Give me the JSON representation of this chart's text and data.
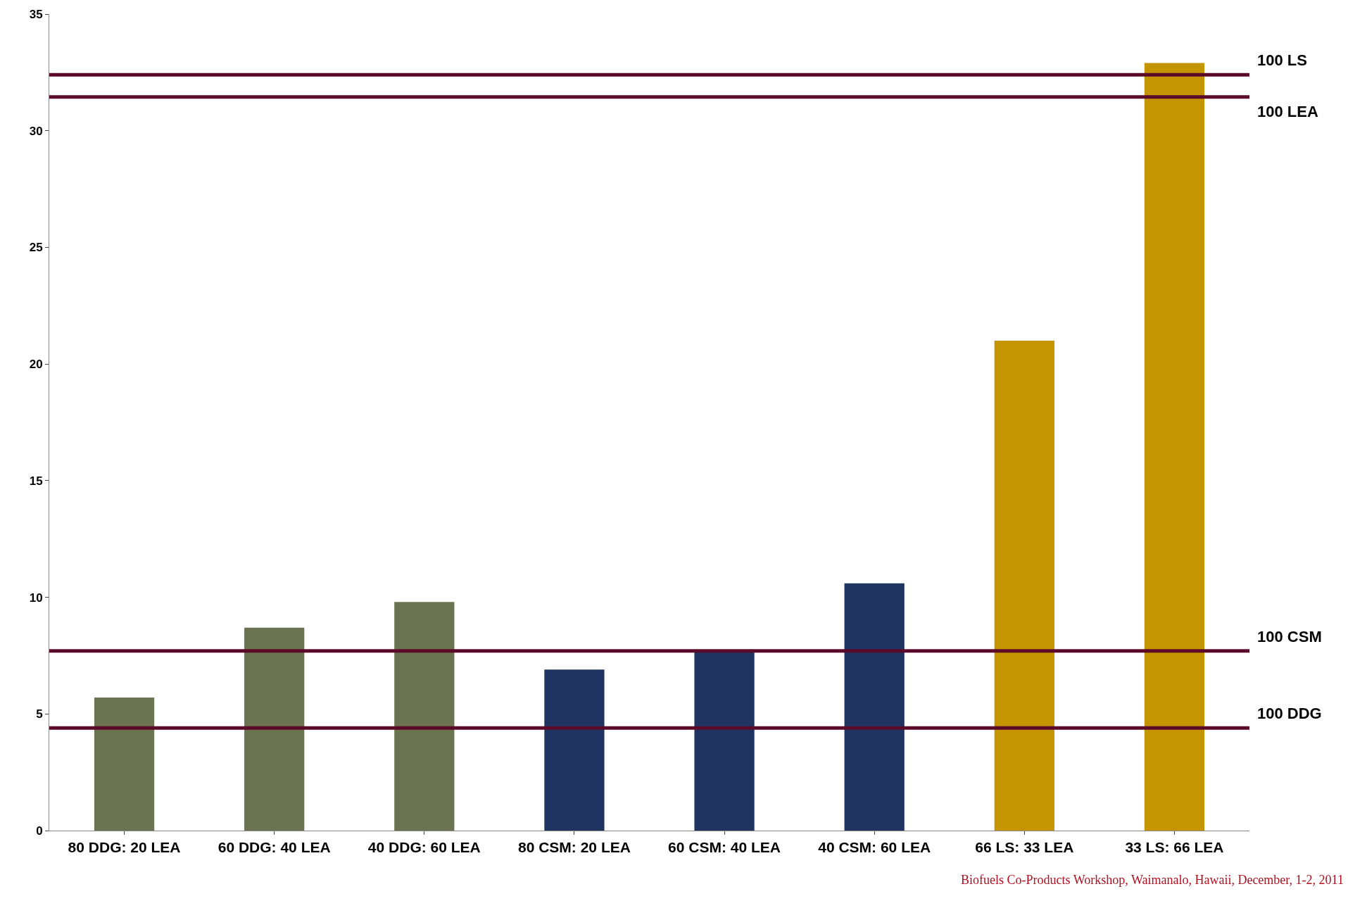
{
  "chart_data": {
    "type": "bar",
    "categories": [
      "80 DDG: 20 LEA",
      "60 DDG: 40 LEA",
      "40 DDG: 60 LEA",
      "80 CSM: 20 LEA",
      "60 CSM: 40 LEA",
      "40 CSM: 60 LEA",
      "66 LS: 33 LEA",
      "33 LS: 66 LEA"
    ],
    "values": [
      5.7,
      8.7,
      9.8,
      6.9,
      7.7,
      10.6,
      21.0,
      32.9
    ],
    "colors": [
      "#6b7450",
      "#6b7450",
      "#6b7450",
      "#1f3461",
      "#1f3461",
      "#1f3461",
      "#c49500",
      "#c49500"
    ],
    "ylim": [
      0,
      35
    ],
    "yticks": [
      0,
      5,
      10,
      15,
      20,
      25,
      30,
      35
    ],
    "ref_lines": [
      {
        "axis": "y",
        "value": 32.4,
        "label": "100 LS",
        "color": "#5c0a2a"
      },
      {
        "axis": "y",
        "value": 31.45,
        "label": "100 LEA",
        "color": "#5c0a2a"
      },
      {
        "axis": "y",
        "value": 7.7,
        "label": "100 CSM",
        "color": "#5c0a2a"
      },
      {
        "axis": "y",
        "value": 4.4,
        "label": "100 DDG",
        "color": "#5c0a2a"
      }
    ],
    "annotations": [
      "Biofuels Co-Products Workshop, Waimanalo, Hawaii, December, 1-2, 2011"
    ]
  }
}
